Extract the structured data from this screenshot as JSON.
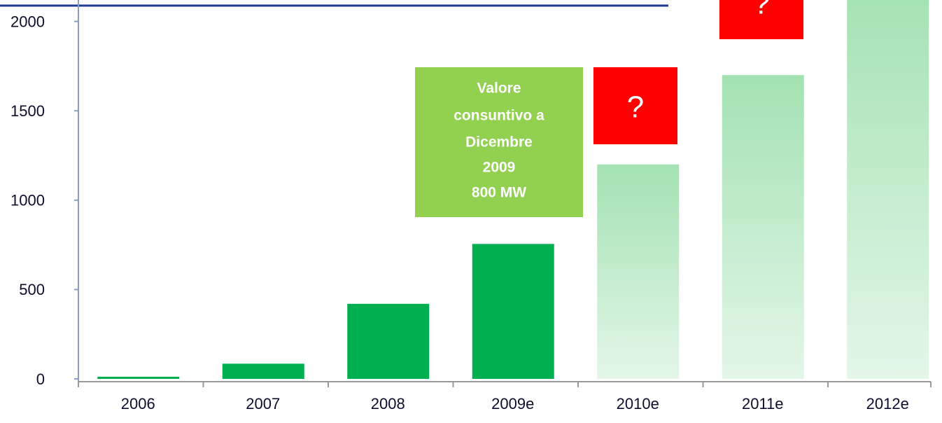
{
  "chart_data": {
    "type": "bar",
    "categories": [
      "2006",
      "2007",
      "2008",
      "2009e",
      "2010e",
      "2011e",
      "2012e"
    ],
    "values": [
      12,
      85,
      420,
      755,
      1200,
      1700,
      2200
    ],
    "colors": [
      "#00b050",
      "#00b050",
      "#00b050",
      "#00b050",
      "#a3e2b2",
      "#a3e2b2",
      "#a3e2b2"
    ],
    "faded": [
      false,
      false,
      false,
      false,
      true,
      true,
      true
    ],
    "ylim": [
      0,
      2120
    ],
    "yticks": [
      0,
      500,
      1000,
      1500,
      2000
    ],
    "grid": false,
    "annotations": {
      "note": [
        "Valore",
        "consuntivo a",
        "Dicembre",
        "2009",
        "800 MW"
      ],
      "questions": [
        "?",
        "?",
        "?"
      ]
    }
  }
}
